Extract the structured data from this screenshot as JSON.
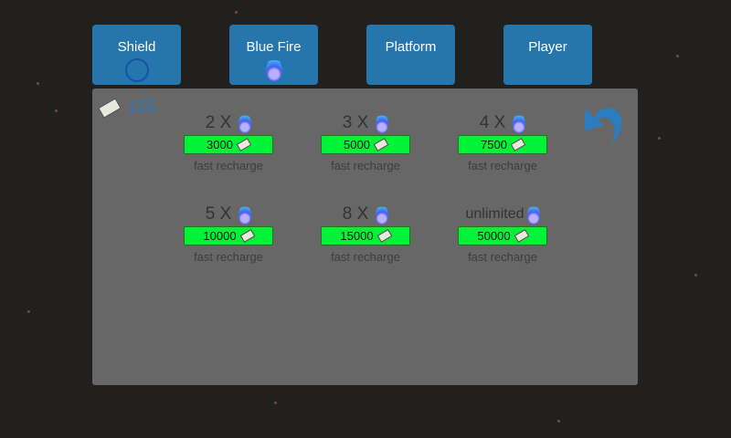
{
  "tabs": [
    {
      "label": "Shield",
      "icon": "shield-circle-icon"
    },
    {
      "label": "Blue Fire",
      "icon": "blue-flame-icon"
    },
    {
      "label": "Platform"
    },
    {
      "label": "Player"
    }
  ],
  "money": {
    "amount": "155",
    "icon": "money-bill-icon"
  },
  "items": [
    {
      "title": "2 X",
      "price": "3000",
      "desc": "fast recharge"
    },
    {
      "title": "3 X",
      "price": "5000",
      "desc": "fast recharge"
    },
    {
      "title": "4 X",
      "price": "7500",
      "desc": "fast recharge"
    },
    {
      "title": "5 X",
      "price": "10000",
      "desc": "fast recharge"
    },
    {
      "title": "8 X",
      "price": "15000",
      "desc": "fast recharge"
    },
    {
      "title": "unlimited",
      "price": "50000",
      "desc": "fast recharge"
    }
  ],
  "colors": {
    "tab": "#2775ad",
    "panel": "#686767",
    "buy": "#00f336",
    "money": "#2a78b8"
  }
}
